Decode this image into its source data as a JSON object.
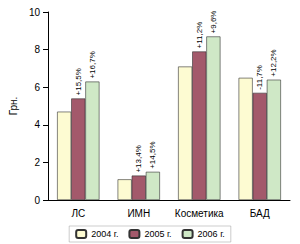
{
  "chart_data": {
    "type": "bar",
    "y_label": "Грн.",
    "categories": [
      "ЛС",
      "ИМН",
      "Косметика",
      "БАД"
    ],
    "series": [
      {
        "name": "2004 г.",
        "color": "#fdfbd2",
        "values": [
          4.7,
          1.1,
          7.1,
          6.5
        ]
      },
      {
        "name": "2005 г.",
        "color": "#a3596b",
        "values": [
          5.4,
          1.3,
          7.9,
          5.7
        ],
        "annotations": [
          "+15,5%",
          "+13,4%",
          "+11,2%",
          "-11,7%"
        ]
      },
      {
        "name": "2006 г.",
        "color": "#cfe8c6",
        "values": [
          6.3,
          1.5,
          8.7,
          6.4
        ],
        "annotations": [
          "+16,7%",
          "+14,5%",
          "+9,6%",
          "+12,2%"
        ]
      }
    ],
    "ylim": [
      0,
      10
    ],
    "yticks": [
      0,
      2,
      4,
      6,
      8,
      10
    ],
    "grid": false,
    "legend": "bottom"
  }
}
